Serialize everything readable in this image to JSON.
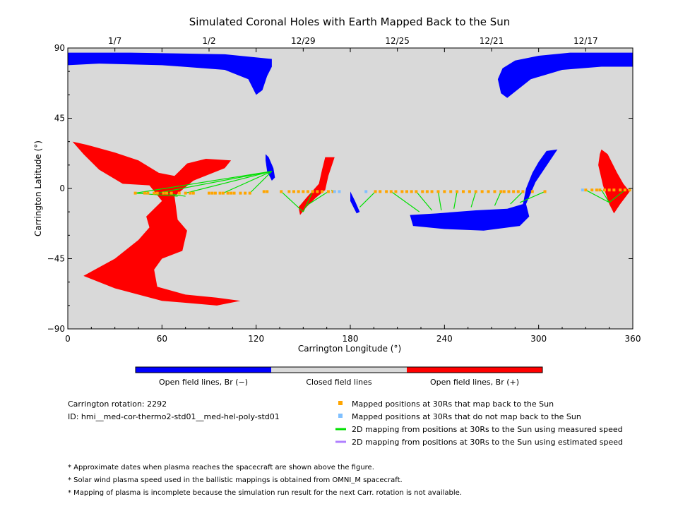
{
  "chart_data": {
    "type": "scatter",
    "title": "Simulated Coronal Holes with Earth Mapped Back to the Sun",
    "xlabel": "Carrington Longitude (°)",
    "ylabel": "Carrington Latitude (°)",
    "xlim": [
      0,
      360
    ],
    "ylim": [
      -90,
      90
    ],
    "xticks": [
      "0",
      "60",
      "120",
      "180",
      "240",
      "300",
      "360"
    ],
    "xtick_values": [
      0,
      60,
      120,
      180,
      240,
      300,
      360
    ],
    "yticks": [
      "90",
      "45",
      "0",
      "−45",
      "−90"
    ],
    "ytick_values": [
      90,
      45,
      0,
      -45,
      -90
    ],
    "date_ticks": [
      "1/7",
      "1/2",
      "12/29",
      "12/25",
      "12/21",
      "12/17"
    ],
    "date_tick_longitudes": [
      30,
      90,
      150,
      210,
      270,
      330
    ],
    "background_color": "#d9d9d9",
    "colorbar": {
      "colors": [
        "#0000ff",
        "#d9d9d9",
        "#ff0000"
      ],
      "labels": [
        "Open field lines, Br (−)",
        "Closed field lines",
        "Open field lines, Br (+)"
      ]
    },
    "coronal_holes": [
      {
        "name": "north polar (wrap)",
        "polarity": "negative",
        "color": "#0000ff",
        "outline": [
          [
            0,
            87
          ],
          [
            40,
            87
          ],
          [
            100,
            86
          ],
          [
            130,
            83
          ],
          [
            130,
            78
          ],
          [
            127,
            72
          ],
          [
            124,
            63
          ],
          [
            120,
            60
          ],
          [
            115,
            70
          ],
          [
            100,
            76
          ],
          [
            60,
            79
          ],
          [
            20,
            80
          ],
          [
            0,
            79
          ]
        ]
      },
      {
        "name": "north polar (right)",
        "polarity": "negative",
        "color": "#0000ff",
        "outline": [
          [
            360,
            87
          ],
          [
            320,
            87
          ],
          [
            300,
            85
          ],
          [
            285,
            82
          ],
          [
            277,
            77
          ],
          [
            274,
            70
          ],
          [
            276,
            61
          ],
          [
            280,
            58
          ],
          [
            285,
            62
          ],
          [
            295,
            70
          ],
          [
            315,
            76
          ],
          [
            340,
            78
          ],
          [
            360,
            78
          ]
        ]
      },
      {
        "name": "south-west positive region",
        "polarity": "positive",
        "color": "#ff0000",
        "outline": [
          [
            3,
            30
          ],
          [
            12,
            28
          ],
          [
            30,
            23
          ],
          [
            45,
            18
          ],
          [
            58,
            10
          ],
          [
            68,
            8
          ],
          [
            76,
            16
          ],
          [
            88,
            19
          ],
          [
            104,
            18
          ],
          [
            100,
            13
          ],
          [
            80,
            5
          ],
          [
            68,
            -5
          ],
          [
            70,
            -20
          ],
          [
            76,
            -27
          ],
          [
            73,
            -40
          ],
          [
            60,
            -45
          ],
          [
            55,
            -52
          ],
          [
            57,
            -63
          ],
          [
            75,
            -68
          ],
          [
            95,
            -70
          ],
          [
            110,
            -72
          ],
          [
            95,
            -75
          ],
          [
            60,
            -72
          ],
          [
            30,
            -64
          ],
          [
            10,
            -56
          ],
          [
            30,
            -45
          ],
          [
            45,
            -33
          ],
          [
            52,
            -25
          ],
          [
            50,
            -18
          ],
          [
            60,
            -8
          ],
          [
            52,
            2
          ],
          [
            35,
            3
          ],
          [
            20,
            12
          ],
          [
            10,
            22
          ]
        ]
      },
      {
        "name": "equatorial negative spur",
        "polarity": "negative",
        "color": "#0000ff",
        "outline": [
          [
            126,
            22
          ],
          [
            128,
            20
          ],
          [
            131,
            13
          ],
          [
            132,
            7
          ],
          [
            130,
            5
          ],
          [
            127,
            11
          ],
          [
            126,
            18
          ]
        ]
      },
      {
        "name": "positive streak",
        "polarity": "positive",
        "color": "#ff0000",
        "outline": [
          [
            164,
            20
          ],
          [
            170,
            20
          ],
          [
            166,
            8
          ],
          [
            164,
            -1
          ],
          [
            158,
            -6
          ],
          [
            152,
            -12
          ],
          [
            148,
            -17
          ],
          [
            147,
            -12
          ],
          [
            152,
            -6
          ],
          [
            160,
            3
          ],
          [
            162,
            12
          ]
        ]
      },
      {
        "name": "small negative patch",
        "polarity": "negative",
        "color": "#0000ff",
        "outline": [
          [
            180,
            -2
          ],
          [
            183,
            -8
          ],
          [
            186,
            -15
          ],
          [
            184,
            -16
          ],
          [
            180,
            -8
          ]
        ]
      },
      {
        "name": "equatorial negative hole",
        "polarity": "negative",
        "color": "#0000ff",
        "outline": [
          [
            218,
            -17
          ],
          [
            235,
            -16
          ],
          [
            260,
            -14
          ],
          [
            280,
            -13
          ],
          [
            290,
            -10
          ],
          [
            292,
            0
          ],
          [
            296,
            10
          ],
          [
            300,
            17
          ],
          [
            305,
            24
          ],
          [
            312,
            25
          ],
          [
            304,
            13
          ],
          [
            298,
            4
          ],
          [
            292,
            -10
          ],
          [
            294,
            -18
          ],
          [
            288,
            -24
          ],
          [
            265,
            -27
          ],
          [
            240,
            -26
          ],
          [
            220,
            -24
          ]
        ]
      },
      {
        "name": "east positive region",
        "polarity": "positive",
        "color": "#ff0000",
        "outline": [
          [
            340,
            25
          ],
          [
            344,
            22
          ],
          [
            350,
            10
          ],
          [
            354,
            3
          ],
          [
            358,
            -2
          ],
          [
            352,
            -10
          ],
          [
            348,
            -16
          ],
          [
            345,
            -10
          ],
          [
            341,
            2
          ],
          [
            338,
            15
          ],
          [
            339,
            22
          ]
        ]
      }
    ],
    "mapped_positions_30Rs_map_back": {
      "color": "#ffa500",
      "lon": [
        43,
        49,
        51,
        55,
        57,
        61,
        63,
        66,
        71,
        75,
        78,
        80,
        90,
        92,
        94,
        97,
        99,
        102,
        104,
        106,
        110,
        113,
        116,
        125,
        127,
        136,
        141,
        144,
        147,
        150,
        153,
        156,
        159,
        162,
        166,
        169,
        196,
        199,
        203,
        206,
        209,
        213,
        216,
        219,
        222,
        226,
        229,
        232,
        236,
        240,
        244,
        248,
        252,
        256,
        260,
        264,
        268,
        272,
        276,
        278,
        281,
        284,
        287,
        290,
        296,
        304,
        330,
        334,
        337,
        339,
        342,
        345,
        348,
        352,
        355,
        358
      ],
      "lat": [
        -3,
        -3,
        -3,
        -3,
        -3,
        -3,
        -3,
        -3,
        -3,
        -3,
        -3,
        -3,
        -3,
        -3,
        -3,
        -3,
        -3,
        -3,
        -3,
        -3,
        -3,
        -3,
        -3,
        -2,
        -2,
        -2,
        -2,
        -2,
        -2,
        -2,
        -2,
        -2,
        -2,
        -2,
        -2,
        -2,
        -2,
        -2,
        -2,
        -2,
        -2,
        -2,
        -2,
        -2,
        -2,
        -2,
        -2,
        -2,
        -2,
        -2,
        -2,
        -2,
        -2,
        -2,
        -2,
        -2,
        -2,
        -2,
        -2,
        -2,
        -2,
        -2,
        -2,
        -2,
        -2,
        -2,
        -1,
        -1,
        -1,
        -1,
        -1,
        -1,
        -1,
        -1,
        -1,
        -1
      ]
    },
    "mapped_positions_30Rs_no_map_back": {
      "color": "#80c0ff",
      "lon": [
        170,
        173,
        190,
        328
      ],
      "lat": [
        -2,
        -2,
        -2,
        -1
      ]
    },
    "mapping_lines_measured_speed": {
      "color": "#00e000",
      "segments": [
        [
          43,
          -3,
          130,
          11
        ],
        [
          57,
          -3,
          130,
          11
        ],
        [
          75,
          -3,
          130,
          11
        ],
        [
          99,
          -3,
          130,
          11
        ],
        [
          116,
          -3,
          130,
          11
        ],
        [
          43,
          -3,
          70,
          -5
        ],
        [
          61,
          -3,
          75,
          -5
        ],
        [
          136,
          -2,
          150,
          -15
        ],
        [
          156,
          -2,
          150,
          -15
        ],
        [
          166,
          -2,
          152,
          -11
        ],
        [
          169,
          -2,
          168,
          -1
        ],
        [
          196,
          -2,
          186,
          -12
        ],
        [
          206,
          -2,
          224,
          -15
        ],
        [
          222,
          -2,
          232,
          -14
        ],
        [
          236,
          -2,
          238,
          -14
        ],
        [
          248,
          -2,
          246,
          -13
        ],
        [
          260,
          -2,
          257,
          -12
        ],
        [
          276,
          -2,
          272,
          -11
        ],
        [
          290,
          -2,
          282,
          -10
        ],
        [
          304,
          -2,
          288,
          -9
        ],
        [
          330,
          -1,
          345,
          -9
        ],
        [
          340,
          -1,
          345,
          -9
        ],
        [
          355,
          -1,
          345,
          -9
        ]
      ]
    },
    "mapping_lines_estimated_speed": {
      "color": "#b080ff",
      "segments": []
    },
    "legend": [
      {
        "label": "Mapped positions at 30Rs that map back to the Sun",
        "color": "#ffa500",
        "kind": "square"
      },
      {
        "label": "Mapped positions at 30Rs that do not map back to the Sun",
        "color": "#80c0ff",
        "kind": "square"
      },
      {
        "label": "2D mapping from positions at 30Rs to the Sun using measured speed",
        "color": "#00e000",
        "kind": "line"
      },
      {
        "label": "2D mapping from positions at 30Rs to the Sun using estimated speed",
        "color": "#b080ff",
        "kind": "line"
      }
    ]
  },
  "info": {
    "rotation": "Carrington rotation: 2292",
    "id": "ID: hmi__med-cor-thermo2-std01__med-hel-poly-std01"
  },
  "notes": [
    "* Approximate dates when plasma reaches the spacecraft are shown above the figure.",
    "* Solar wind plasma speed used in the ballistic mappings is obtained from OMNI_M spacecraft.",
    "* Mapping of plasma is incomplete because the simulation run result for the next Carr. rotation is not available."
  ]
}
